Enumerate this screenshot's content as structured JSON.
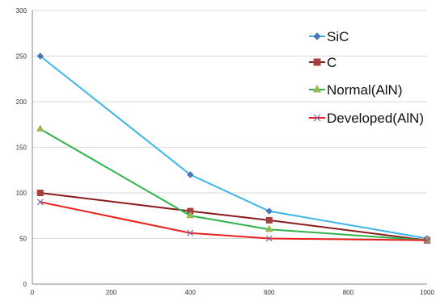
{
  "chart_data": {
    "type": "line",
    "title": "",
    "xlabel": "",
    "ylabel": "",
    "xlim": [
      0,
      1000
    ],
    "ylim": [
      0,
      300
    ],
    "xticks": [
      0,
      200,
      400,
      600,
      800,
      1000
    ],
    "yticks": [
      0,
      50,
      100,
      150,
      200,
      250,
      300
    ],
    "grid": "horizontal",
    "legend_position": "right",
    "series": [
      {
        "name": "SiC",
        "color": "#3DB5E8",
        "marker": "diamond",
        "marker_color": "#4F74B8",
        "x": [
          20,
          400,
          600,
          1000
        ],
        "y": [
          250,
          120,
          80,
          50
        ]
      },
      {
        "name": "C",
        "color": "#8B1A1A",
        "marker": "square",
        "marker_color": "#A63F3F",
        "x": [
          20,
          400,
          600,
          1000
        ],
        "y": [
          100,
          80,
          70,
          48
        ]
      },
      {
        "name": "Normal(AlN)",
        "color": "#2DB34A",
        "marker": "triangle",
        "marker_color": "#98B954",
        "x": [
          20,
          400,
          600,
          1000
        ],
        "y": [
          170,
          75,
          60,
          48
        ]
      },
      {
        "name": "Developed(AlN)",
        "color": "#E8201C",
        "marker": "x",
        "marker_color": "#7E5FA8",
        "x": [
          20,
          400,
          600,
          1000
        ],
        "y": [
          90,
          56,
          50,
          48
        ]
      }
    ]
  }
}
